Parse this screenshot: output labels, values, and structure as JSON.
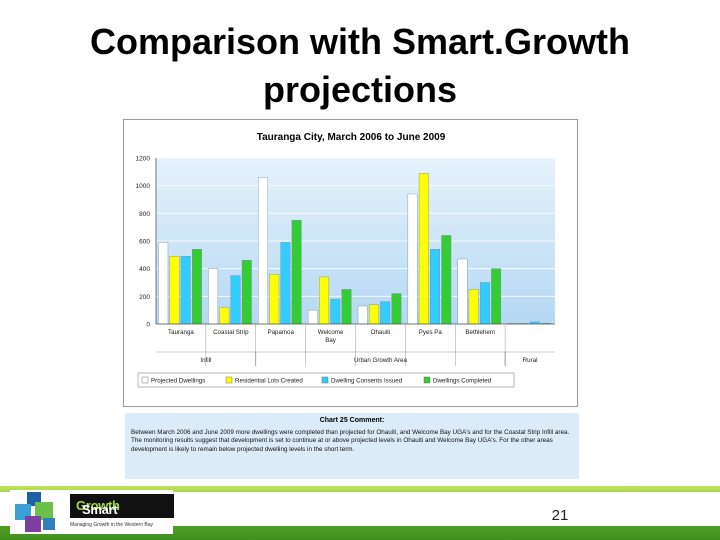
{
  "slide": {
    "title_line1": "Comparison with Smart.Growth",
    "title_line2": "projections",
    "page_number": "21"
  },
  "comment": {
    "title": "Chart 25 Comment:",
    "text": "Between March 2006 and June 2009 more dwellings were completed than projected for Ohauiti, and Welcome Bay UGA's and for the Coastal Strip Infill area. The monitoring results suggest that development is set to continue at or above projected levels in Ohauiti and Welcome Bay UGA's. For the other areas development is likely to remain below projected dwelling levels in the short term."
  },
  "logo": {
    "word_prefix": "Smart",
    "word_suffix": "Growth",
    "tagline": "Managing Growth in the Western Bay"
  },
  "colors": {
    "projected": "#ffffff",
    "lots": "#ffff00",
    "consents": "#33ccff",
    "completed": "#33cc33",
    "plot_top": "#e6f2fb",
    "plot_bottom": "#b5d8f3"
  },
  "chart_data": {
    "type": "bar",
    "title": "Tauranga City, March 2006 to June 2009",
    "xlabel": "",
    "ylabel": "",
    "ylim": [
      0,
      1200
    ],
    "yticks": [
      "0",
      "200",
      "400",
      "600",
      "800",
      "1000",
      "1200"
    ],
    "categories": [
      "Tauranga",
      "Coastal Strip",
      "Papamoa",
      "Welcome Bay",
      "Ohauiti",
      "Pyes Pa",
      "Bethlehem",
      ""
    ],
    "groups": [
      {
        "label": "Infill",
        "span": [
          0,
          1
        ]
      },
      {
        "label": "Urban Growth Area",
        "span": [
          2,
          6
        ]
      },
      {
        "label": "Rural",
        "span": [
          7,
          7
        ]
      }
    ],
    "series": [
      {
        "name": "Projected Dwellings",
        "values": [
          590,
          400,
          1060,
          100,
          130,
          940,
          470,
          5
        ]
      },
      {
        "name": "Residential Lots Created",
        "values": [
          490,
          120,
          360,
          340,
          140,
          1090,
          250,
          5
        ]
      },
      {
        "name": "Dwelling Consents Issued",
        "values": [
          490,
          350,
          590,
          180,
          160,
          540,
          300,
          15
        ]
      },
      {
        "name": "Dwellings Completed",
        "values": [
          540,
          460,
          750,
          250,
          220,
          640,
          400,
          5
        ]
      }
    ],
    "grid": true,
    "legend_position": "bottom"
  }
}
